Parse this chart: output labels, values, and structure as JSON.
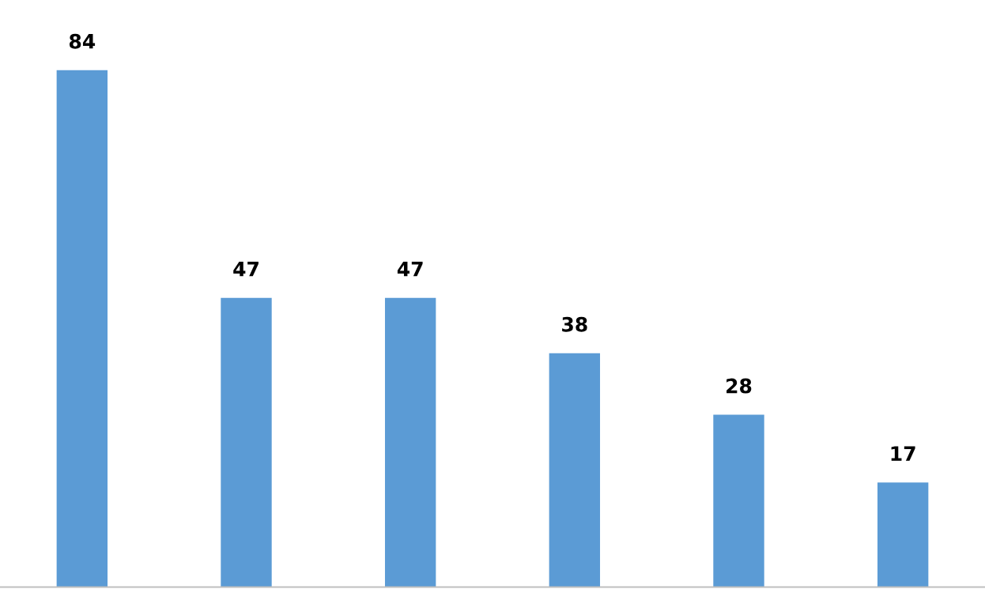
{
  "chart_data": {
    "type": "bar",
    "categories": [
      null,
      null,
      null,
      null,
      null,
      null
    ],
    "values": [
      84,
      47,
      47,
      38,
      28,
      17
    ],
    "color": "#5b9bd5",
    "data_labels": true,
    "grid": false,
    "legend": false
  }
}
